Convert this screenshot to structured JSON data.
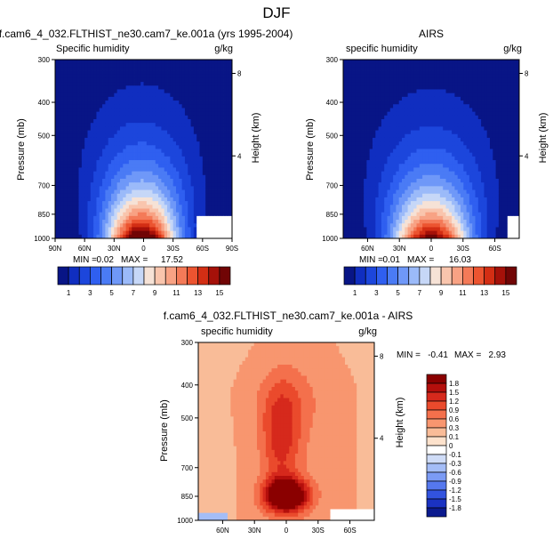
{
  "figure_title": "DJF",
  "chart_data": [
    {
      "type": "heatmap",
      "id": "model",
      "title": "f.cam6_4_032.FLTHIST_ne30.cam7_ke.001a (yrs 1995-2004)",
      "left_label": "Specific humidity",
      "units": "g/kg",
      "ylabel": "Pressure (mb)",
      "y2label": "Height (km)",
      "yticks": [
        "300",
        "400",
        "500",
        "700",
        "850",
        "1000"
      ],
      "y2ticks": [
        "8",
        "4"
      ],
      "xticks": [
        "90N",
        "60N",
        "30N",
        "0",
        "30S",
        "60S",
        "90S"
      ],
      "xlim": [
        90,
        -90
      ],
      "min_label": "MIN =",
      "min": "0.02",
      "max_label": "MAX =",
      "max": "17.52",
      "peak_lat": 2,
      "peak_value": 17.52,
      "colorbar_labels": [
        "1",
        "3",
        "5",
        "7",
        "9",
        "11",
        "13",
        "15"
      ]
    },
    {
      "type": "heatmap",
      "id": "obs",
      "title": "AIRS",
      "left_label": "specific humidity",
      "units": "g/kg",
      "ylabel": "Pressure (mb)",
      "y2label": "Height (km)",
      "yticks": [
        "300",
        "400",
        "500",
        "700",
        "850",
        "1000"
      ],
      "y2ticks": [
        "8",
        "4"
      ],
      "xticks": [
        "60N",
        "30N",
        "0",
        "30S",
        "60S"
      ],
      "xlim": [
        83,
        -83
      ],
      "min_label": "MIN =",
      "min": "0.01",
      "max_label": "MAX =",
      "max": "16.03",
      "peak_lat": 0,
      "peak_value": 16.03,
      "colorbar_labels": [
        "1",
        "3",
        "5",
        "7",
        "9",
        "11",
        "13",
        "15"
      ]
    },
    {
      "type": "heatmap",
      "id": "diff",
      "title": "f.cam6_4_032.FLTHIST_ne30.cam7_ke.001a - AIRS",
      "left_label": "specific humidity",
      "units": "g/kg",
      "ylabel": "Pressure (mb)",
      "y2label": "Height (km)",
      "yticks": [
        "300",
        "400",
        "500",
        "700",
        "850",
        "1000"
      ],
      "y2ticks": [
        "8",
        "4"
      ],
      "xticks": [
        "60N",
        "30N",
        "0",
        "30S",
        "60S"
      ],
      "xlim": [
        83,
        -83
      ],
      "min_label": "MIN =",
      "min": "-0.41",
      "max_label": "MAX =",
      "max": "2.93",
      "colorbar_labels": [
        "1.8",
        "1.5",
        "1.2",
        "0.9",
        "0.6",
        "0.3",
        "0.1",
        "0",
        "-0.1",
        "-0.3",
        "-0.6",
        "-0.9",
        "-1.2",
        "-1.5",
        "-1.8"
      ]
    }
  ],
  "colors": {
    "sequential": [
      "#081586",
      "#102ec0",
      "#1c46dc",
      "#2f5ff0",
      "#4a7bf5",
      "#6f98f8",
      "#9bbaf9",
      "#c6d7f7",
      "#f6e2d6",
      "#f9c5ad",
      "#f8a284",
      "#f47a58",
      "#ec5430",
      "#d32e14",
      "#a51109",
      "#710505"
    ],
    "diverging": [
      "#8a0000",
      "#b40f0c",
      "#d6291c",
      "#ea4a2c",
      "#f4704c",
      "#f8966f",
      "#f9bc98",
      "#fde2cc",
      "#ffffff",
      "#cfdcf7",
      "#a4bdf7",
      "#7b9bf5",
      "#5578ee",
      "#3253df",
      "#1a32c2",
      "#0b1a8e"
    ]
  }
}
